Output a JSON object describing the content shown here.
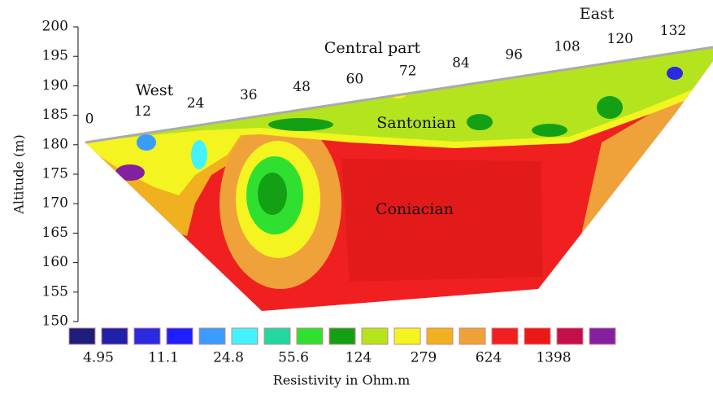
{
  "chart_data": {
    "type": "section",
    "ylabel": "Altitude (m)",
    "ylim": [
      150,
      200
    ],
    "yticks": [
      150,
      155,
      160,
      165,
      170,
      175,
      180,
      185,
      190,
      195,
      200
    ],
    "xlim": [
      0,
      132
    ],
    "xticks": [
      0,
      12,
      24,
      36,
      48,
      60,
      72,
      84,
      96,
      108,
      120,
      132
    ],
    "annotations": [
      "West",
      "Central part",
      "East",
      "Santonian",
      "Coniacian"
    ],
    "colorbar": {
      "title": "Resistivity in Ohm.m",
      "colors": [
        "#1b1f7a",
        "#2020a8",
        "#2a2ae0",
        "#1e1eff",
        "#3a9cff",
        "#44f2ff",
        "#20d8a0",
        "#30e030",
        "#14a014",
        "#b4e41e",
        "#f4f420",
        "#f0b020",
        "#f0a23a",
        "#f02020",
        "#ec1818",
        "#c4104a",
        "#8420a0"
      ],
      "labels": [
        4.95,
        11.1,
        24.8,
        55.6,
        124,
        279,
        624,
        1398
      ]
    }
  }
}
